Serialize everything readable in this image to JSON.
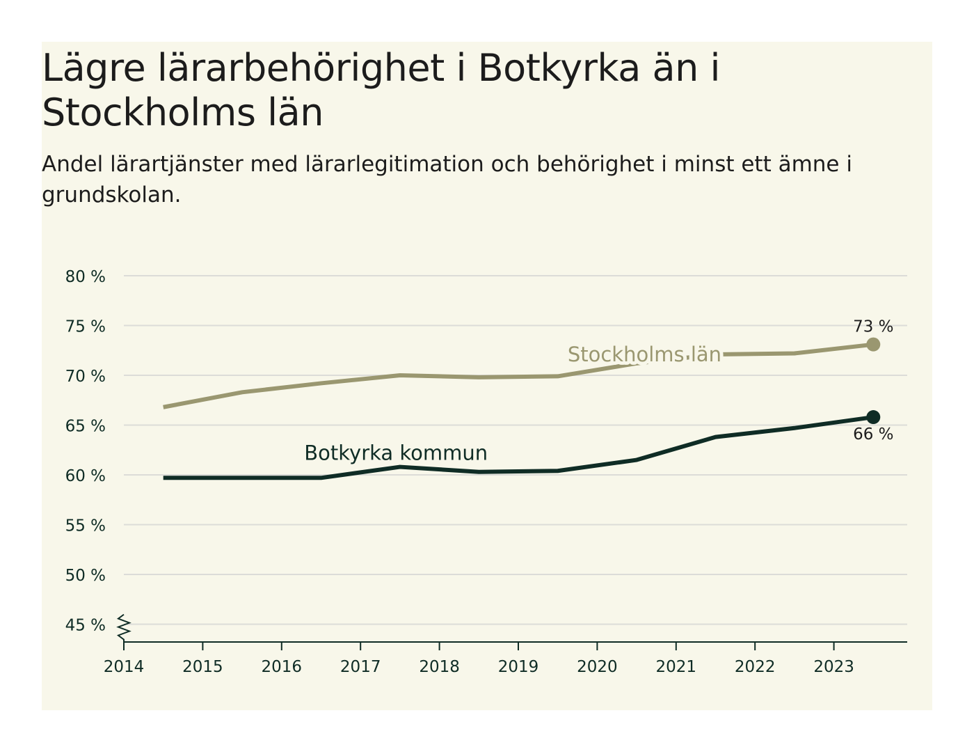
{
  "title": "Lägre lärarbehörighet i Botkyrka än i Stockholms län",
  "subtitle": "Andel lärartjänster med lärarlegitimation och behörighet i minst ett ämne i grundskolan.",
  "chart_data": {
    "type": "line",
    "title": "Lägre lärarbehörighet i Botkyrka än i Stockholms län",
    "subtitle": "Andel lärartjänster med lärarlegitimation och behörighet i minst ett ämne i grundskolan.",
    "xlabel": "",
    "ylabel": "",
    "x": [
      2014.5,
      2015.5,
      2016.5,
      2017.5,
      2018.5,
      2019.5,
      2020.5,
      2021.5,
      2022.5,
      2023.5
    ],
    "xticks": [
      "2014",
      "2015",
      "2016",
      "2017",
      "2018",
      "2019",
      "2020",
      "2021",
      "2022",
      "2023"
    ],
    "yticks": [
      "45 %",
      "50 %",
      "55 %",
      "60 %",
      "65 %",
      "70 %",
      "75 %",
      "80 %"
    ],
    "ylim": [
      43,
      80
    ],
    "grid": true,
    "axis_break": true,
    "series": [
      {
        "name": "Stockholms län",
        "color": "#9a9770",
        "values": [
          66.8,
          68.3,
          69.2,
          70.0,
          69.8,
          69.9,
          71.2,
          72.1,
          72.2,
          73.1
        ],
        "end_label": "73 %"
      },
      {
        "name": "Botkyrka kommun",
        "color": "#0f2c25",
        "values": [
          59.7,
          59.7,
          59.7,
          60.8,
          60.3,
          60.4,
          61.5,
          63.8,
          64.7,
          65.8
        ],
        "end_label": "66 %"
      }
    ],
    "colors": {
      "grid": "#dcdcd8",
      "axis": "#0f2c25",
      "background": "#f8f7ea",
      "tick_text": "#0f2c25"
    }
  }
}
